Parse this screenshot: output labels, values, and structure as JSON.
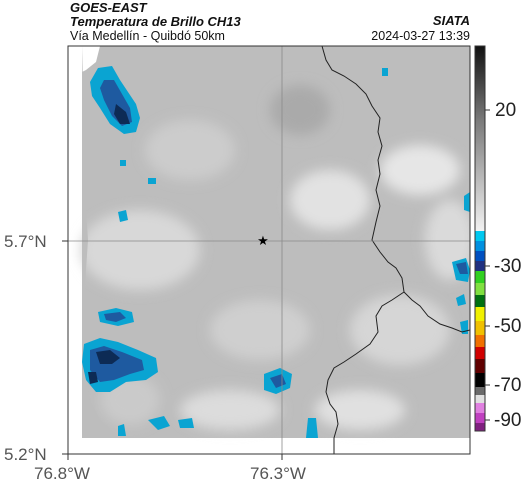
{
  "header": {
    "satellite": "GOES-EAST",
    "product": "Temperatura de Brillo CH13",
    "route": "Vía Medellín - Quibdó 50km",
    "agency": "SIATA",
    "timestamp": "2024-03-27 13:39"
  },
  "axes": {
    "lat_ticks": [
      "5.7°N",
      "5.2°N"
    ],
    "lon_ticks": [
      "76.8°W",
      "76.3°W"
    ]
  },
  "colorbar": {
    "labels": [
      "20",
      "-30",
      "-50",
      "-70",
      "-90"
    ],
    "colors": {
      "warm_top": "#111111",
      "warm_mid": "#a0a0a0",
      "warm_low": "#eeeeee",
      "cyan": "#00c8f0",
      "blue": "#0050c0",
      "green": "#30d020",
      "yellow": "#f0f000",
      "orange": "#f07000",
      "red": "#d00000",
      "black": "#000000",
      "magenta": "#c040c0"
    }
  },
  "map": {
    "marker_icon": "star-icon",
    "colors": {
      "land": "#c2c2c2",
      "cloud_cyan": "#0aa4d2",
      "cloud_blue": "#1e5aa0",
      "cloud_dark": "#0d2b55",
      "border": "#222222",
      "grid": "#888888"
    }
  }
}
